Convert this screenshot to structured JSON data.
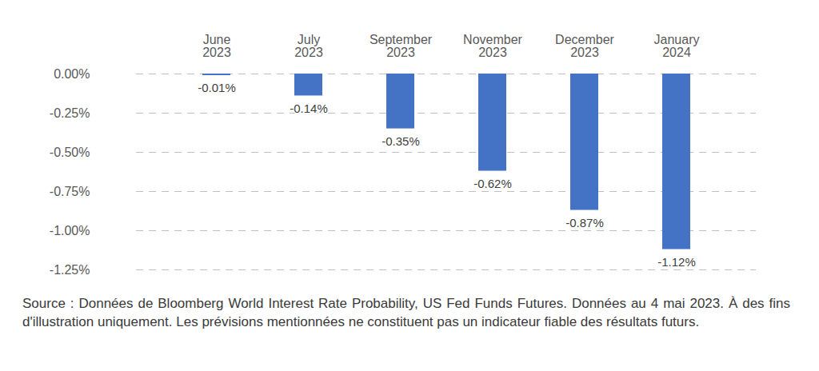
{
  "chart_data": {
    "type": "bar",
    "caption": "Source : Données de Bloomberg World Interest Rate Probability, US Fed Funds Futures. Données au 4 mai 2023. À des fins d'illustration uniquement. Les prévisions mentionnées ne constituent pas un indicateur fiable des résultats futurs.",
    "categories": [
      "June\n2023",
      "July\n2023",
      "September\n2023",
      "November\n2023",
      "December\n2023",
      "January\n2024"
    ],
    "values": [
      -0.01,
      -0.14,
      -0.35,
      -0.62,
      -0.87,
      -1.12
    ],
    "value_labels": [
      "-0.01%",
      "-0.14%",
      "-0.35%",
      "-0.62%",
      "-0.87%",
      "-1.12%"
    ],
    "color": "#4472c4",
    "ylim": [
      -1.25,
      0
    ],
    "yticks": [
      {
        "value": 0,
        "label": "0.00%"
      },
      {
        "value": -0.25,
        "label": "-0.25%"
      },
      {
        "value": -0.5,
        "label": "-0.50%"
      },
      {
        "value": -0.75,
        "label": "-0.75%"
      },
      {
        "value": -1,
        "label": "-1.00%"
      },
      {
        "value": -1.25,
        "label": "-1.25%"
      }
    ],
    "grid": true,
    "data_labels": true
  }
}
